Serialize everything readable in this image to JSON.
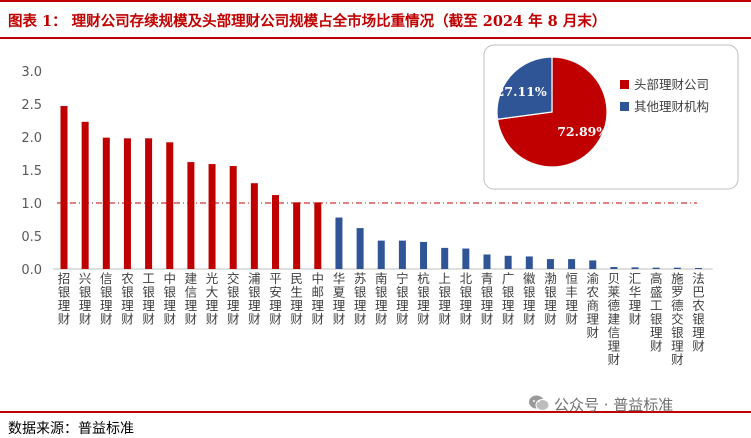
{
  "header": {
    "title": "图表 1：  理财公司存续规模及头部理财公司规模占全市场比重情况（截至 2024 年 8 月末）"
  },
  "footer": {
    "source": "数据来源：普益标准",
    "watermark": "公众号 · 普益标准"
  },
  "colors": {
    "red": "#c00000",
    "blue": "#2f5597",
    "grid_line": "#c00000"
  },
  "chart_data": [
    {
      "type": "bar",
      "categories": [
        "招银理财",
        "兴银理财",
        "信银理财",
        "农银理财",
        "工银理财",
        "中银理财",
        "建信理财",
        "光大理财",
        "交银理财",
        "浦银理财",
        "平安理财",
        "民生理财",
        "中邮理财",
        "华夏理财",
        "苏银理财",
        "南银理财",
        "宁银理财",
        "杭银理财",
        "上银理财",
        "北银理财",
        "青银理财",
        "广银理财",
        "徽银理财",
        "渤银理财",
        "恒丰理财",
        "渝农商理财",
        "贝莱德建信理财",
        "汇华理财",
        "高盛工银理财",
        "施罗德交银理财",
        "法巴农银理财"
      ],
      "values": [
        2.47,
        2.23,
        1.99,
        1.98,
        1.98,
        1.92,
        1.62,
        1.59,
        1.56,
        1.3,
        1.12,
        1.01,
        1.01,
        0.78,
        0.62,
        0.43,
        0.43,
        0.41,
        0.32,
        0.31,
        0.22,
        0.2,
        0.19,
        0.15,
        0.15,
        0.13,
        0.03,
        0.025,
        0.02,
        0.02,
        0.015
      ],
      "bar_colors": [
        "red",
        "red",
        "red",
        "red",
        "red",
        "red",
        "red",
        "red",
        "red",
        "red",
        "red",
        "red",
        "red",
        "blue",
        "blue",
        "blue",
        "blue",
        "blue",
        "blue",
        "blue",
        "blue",
        "blue",
        "blue",
        "blue",
        "blue",
        "blue",
        "blue",
        "blue",
        "blue",
        "blue",
        "blue"
      ],
      "ylim": [
        0,
        3.0
      ],
      "yticks": [
        "0.0",
        "0.5",
        "1.0",
        "1.5",
        "2.0",
        "2.5",
        "3.0"
      ],
      "reference_line": 1.0,
      "grid": false
    },
    {
      "type": "pie",
      "labels": [
        "头部理财公司",
        "其他理财机构"
      ],
      "values": [
        72.89,
        27.11
      ],
      "data_labels": [
        "72.89%",
        "27.11%"
      ],
      "colors": [
        "#c00000",
        "#2f5597"
      ],
      "legend": "right"
    }
  ]
}
